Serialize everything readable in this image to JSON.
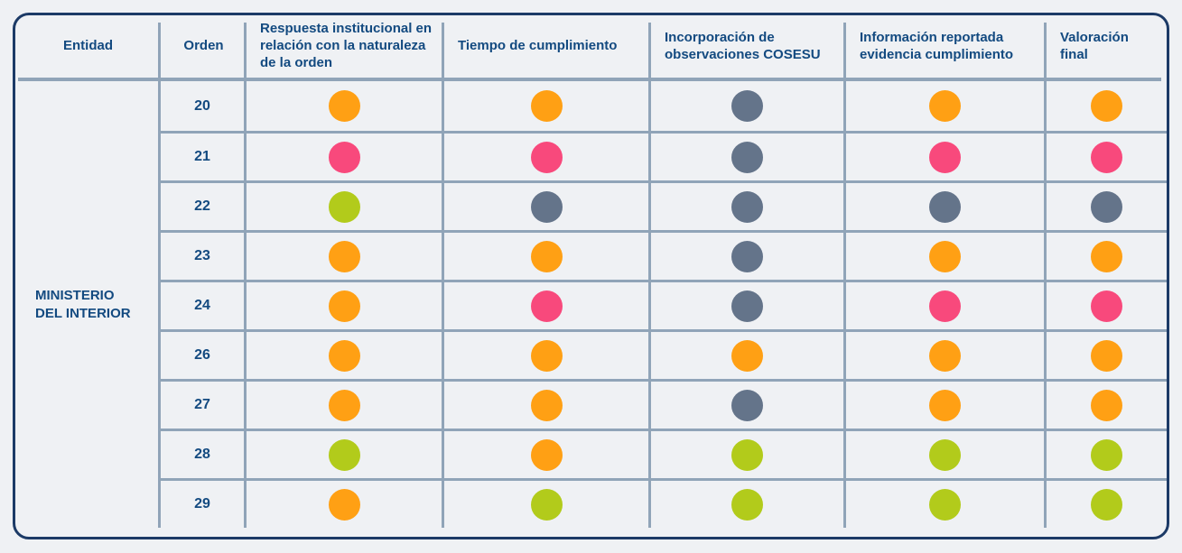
{
  "palette": {
    "background": "#EFF1F4",
    "frame_border": "#1C3A66",
    "grid_line": "#90A4B8",
    "text_blue": "#134A80"
  },
  "chart_data": {
    "type": "table",
    "title": "",
    "columns": [
      "Entidad",
      "Orden",
      "Respuesta institucional en relación con la naturaleza de la orden",
      "Tiempo de cumplimiento",
      "Incorporación de observaciones COSESU",
      "Información reportada evidencia cumplimiento",
      "Valoración final"
    ],
    "entity": "MINISTERIO DEL INTERIOR",
    "value_colors": {
      "orange": "#FFA014",
      "pink": "#F8497C",
      "green": "#B2CB1B",
      "gray": "#64748A"
    },
    "rows": [
      {
        "orden": "20",
        "values": [
          "orange",
          "orange",
          "gray",
          "orange",
          "orange"
        ]
      },
      {
        "orden": "21",
        "values": [
          "pink",
          "pink",
          "gray",
          "pink",
          "pink"
        ]
      },
      {
        "orden": "22",
        "values": [
          "green",
          "gray",
          "gray",
          "gray",
          "gray"
        ]
      },
      {
        "orden": "23",
        "values": [
          "orange",
          "orange",
          "gray",
          "orange",
          "orange"
        ]
      },
      {
        "orden": "24",
        "values": [
          "orange",
          "pink",
          "gray",
          "pink",
          "pink"
        ]
      },
      {
        "orden": "26",
        "values": [
          "orange",
          "orange",
          "orange",
          "orange",
          "orange"
        ]
      },
      {
        "orden": "27",
        "values": [
          "orange",
          "orange",
          "gray",
          "orange",
          "orange"
        ]
      },
      {
        "orden": "28",
        "values": [
          "green",
          "orange",
          "green",
          "green",
          "green"
        ]
      },
      {
        "orden": "29",
        "values": [
          "orange",
          "green",
          "green",
          "green",
          "green"
        ]
      }
    ]
  }
}
